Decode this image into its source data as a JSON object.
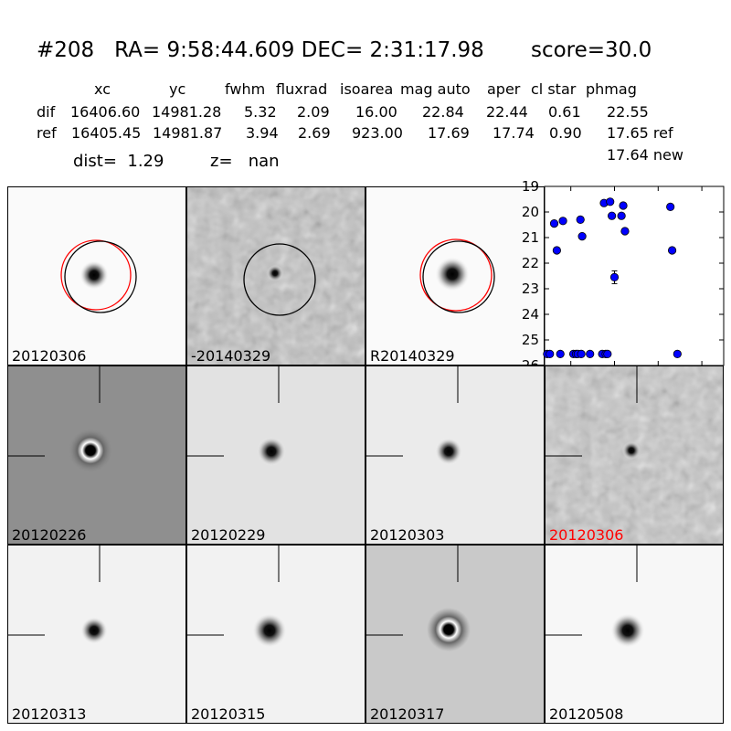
{
  "header": {
    "title": "#208   RA= 9:58:44.609 DEC= 2:31:17.98       score=30.0",
    "columns": [
      "xc",
      "yc",
      "fwhm",
      "fluxrad",
      "isoarea",
      "mag auto",
      "aper",
      "cl star",
      "phmag"
    ],
    "rows": [
      {
        "name": "dif",
        "values": [
          "16406.60",
          "14981.28",
          "5.32",
          "2.09",
          "16.00",
          "22.84",
          "22.44",
          "0.61",
          "22.55"
        ]
      },
      {
        "name": "ref",
        "values": [
          "16405.45",
          "14981.87",
          "3.94",
          "2.69",
          "923.00",
          "17.69",
          "17.74",
          "0.90",
          "17.65 ref"
        ]
      }
    ],
    "extra_phmag": "17.64 new",
    "dist_text": "dist=  1.29",
    "z_text": "z=   nan"
  },
  "top_panels": [
    {
      "label": "20120306"
    },
    {
      "label": "-20140329"
    },
    {
      "label": "R20140329"
    }
  ],
  "grid_panels": [
    {
      "label": "20120226"
    },
    {
      "label": "20120229"
    },
    {
      "label": "20120303"
    },
    {
      "label": "20120306",
      "label_color": "#ff0000"
    },
    {
      "label": "20120313"
    },
    {
      "label": "20120315"
    },
    {
      "label": "20120317"
    },
    {
      "label": "20120508"
    }
  ],
  "chart_data": {
    "type": "scatter",
    "xlim": [
      -80,
      125
    ],
    "ylim": [
      26,
      19
    ],
    "x_ticks": [
      "-50",
      "0",
      "50",
      "100"
    ],
    "y_ticks": [
      "19",
      "20",
      "21",
      "22",
      "23",
      "24",
      "25",
      "26"
    ],
    "points": [
      {
        "x": -69,
        "y": 20.45
      },
      {
        "x": -66,
        "y": 21.5
      },
      {
        "x": -59,
        "y": 20.35
      },
      {
        "x": -39,
        "y": 20.3
      },
      {
        "x": -37,
        "y": 20.95
      },
      {
        "x": -12,
        "y": 19.65
      },
      {
        "x": -5,
        "y": 19.6
      },
      {
        "x": -3,
        "y": 20.15
      },
      {
        "x": 0,
        "y": 22.55,
        "err": 0.25
      },
      {
        "x": 8,
        "y": 20.15
      },
      {
        "x": 10,
        "y": 19.75
      },
      {
        "x": 12,
        "y": 20.75
      },
      {
        "x": 64,
        "y": 19.8
      },
      {
        "x": 66,
        "y": 21.5
      },
      {
        "x": -77,
        "y": 25.55
      },
      {
        "x": -74,
        "y": 25.55
      },
      {
        "x": -62,
        "y": 25.55
      },
      {
        "x": -47,
        "y": 25.55
      },
      {
        "x": -44,
        "y": 25.55
      },
      {
        "x": -42,
        "y": 25.55
      },
      {
        "x": -38,
        "y": 25.55
      },
      {
        "x": -28,
        "y": 25.55
      },
      {
        "x": -14,
        "y": 25.55
      },
      {
        "x": -10,
        "y": 25.55
      },
      {
        "x": -8,
        "y": 25.55
      },
      {
        "x": 72,
        "y": 25.55
      }
    ],
    "marker_color": "#0000ff",
    "grid": false
  }
}
